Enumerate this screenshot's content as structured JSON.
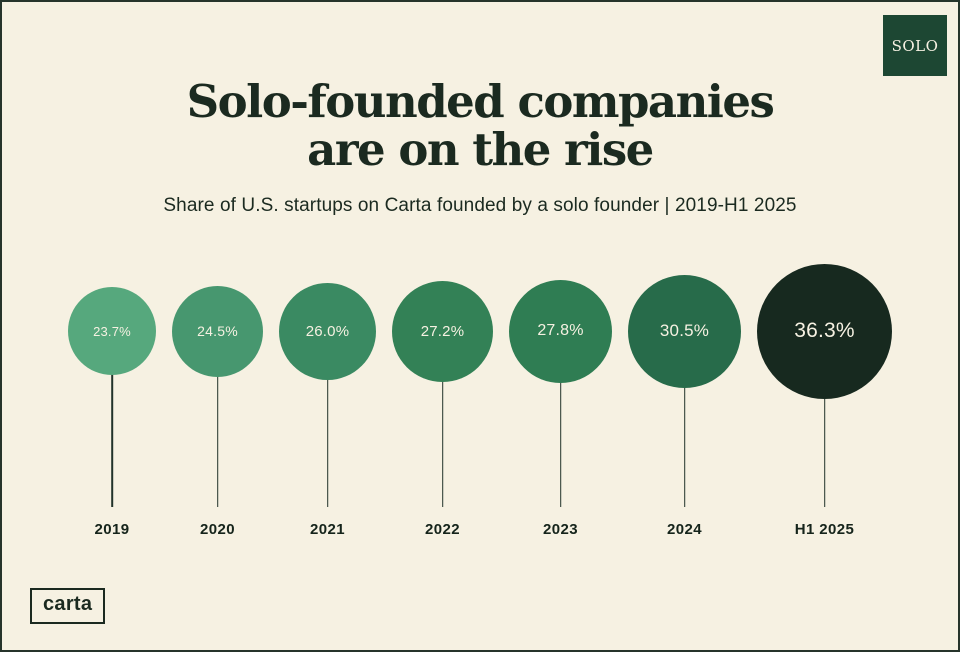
{
  "page": {
    "background": "#f6f1e2",
    "frame_color": "#26342b"
  },
  "badge": {
    "label": "SOLO",
    "background": "#1d4733",
    "text_color": "#f6f1e2"
  },
  "header": {
    "title_line1": "Solo-founded companies",
    "title_line2": "are on the rise",
    "subtitle": "Share of U.S. startups on Carta founded by a solo founder | 2019-H1 2025"
  },
  "footer": {
    "logo_label": "carta"
  },
  "chart_data": {
    "type": "bar",
    "variant": "lollipop-bubble",
    "title": "Solo-founded companies are on the rise",
    "subtitle": "Share of U.S. startups on Carta founded by a solo founder | 2019-H1 2025",
    "categories": [
      "2019",
      "2020",
      "2021",
      "2022",
      "2023",
      "2024",
      "H1 2025"
    ],
    "values": [
      23.7,
      24.5,
      26.0,
      27.2,
      27.8,
      30.5,
      36.3
    ],
    "value_labels": [
      "23.7%",
      "24.5%",
      "26.0%",
      "27.2%",
      "27.8%",
      "30.5%",
      "36.3%"
    ],
    "unit": "%",
    "bubble_colors": [
      "#56a87d",
      "#47976f",
      "#3a8a62",
      "#338156",
      "#2f7d53",
      "#276b4a",
      "#17291f"
    ],
    "label_text_color": "#f6f1e2",
    "stem_color": "#22332a",
    "encoding": "bubble diameter proportional to value",
    "legend": "none",
    "grid": "off"
  }
}
